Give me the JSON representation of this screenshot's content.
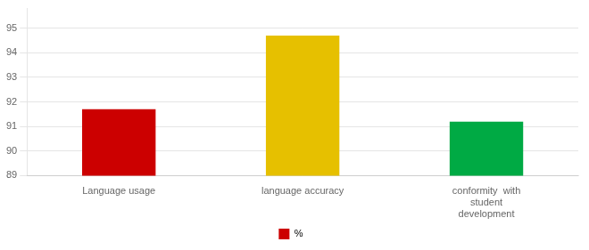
{
  "chart_data": {
    "type": "bar",
    "categories": [
      "Language usage",
      "language accuracy",
      "conformity  with\nstudent\ndevelopment"
    ],
    "series": [
      {
        "name": "%",
        "color": "#cc0000",
        "colors": [
          "#cc0000",
          "#e6c000",
          "#00aa44"
        ],
        "values": [
          91.7,
          94.7,
          91.2
        ]
      }
    ],
    "ylim": [
      89,
      95.8
    ],
    "yticks": [
      89,
      90,
      91,
      92,
      93,
      94,
      95
    ],
    "grid": true,
    "legend": "bottom"
  }
}
